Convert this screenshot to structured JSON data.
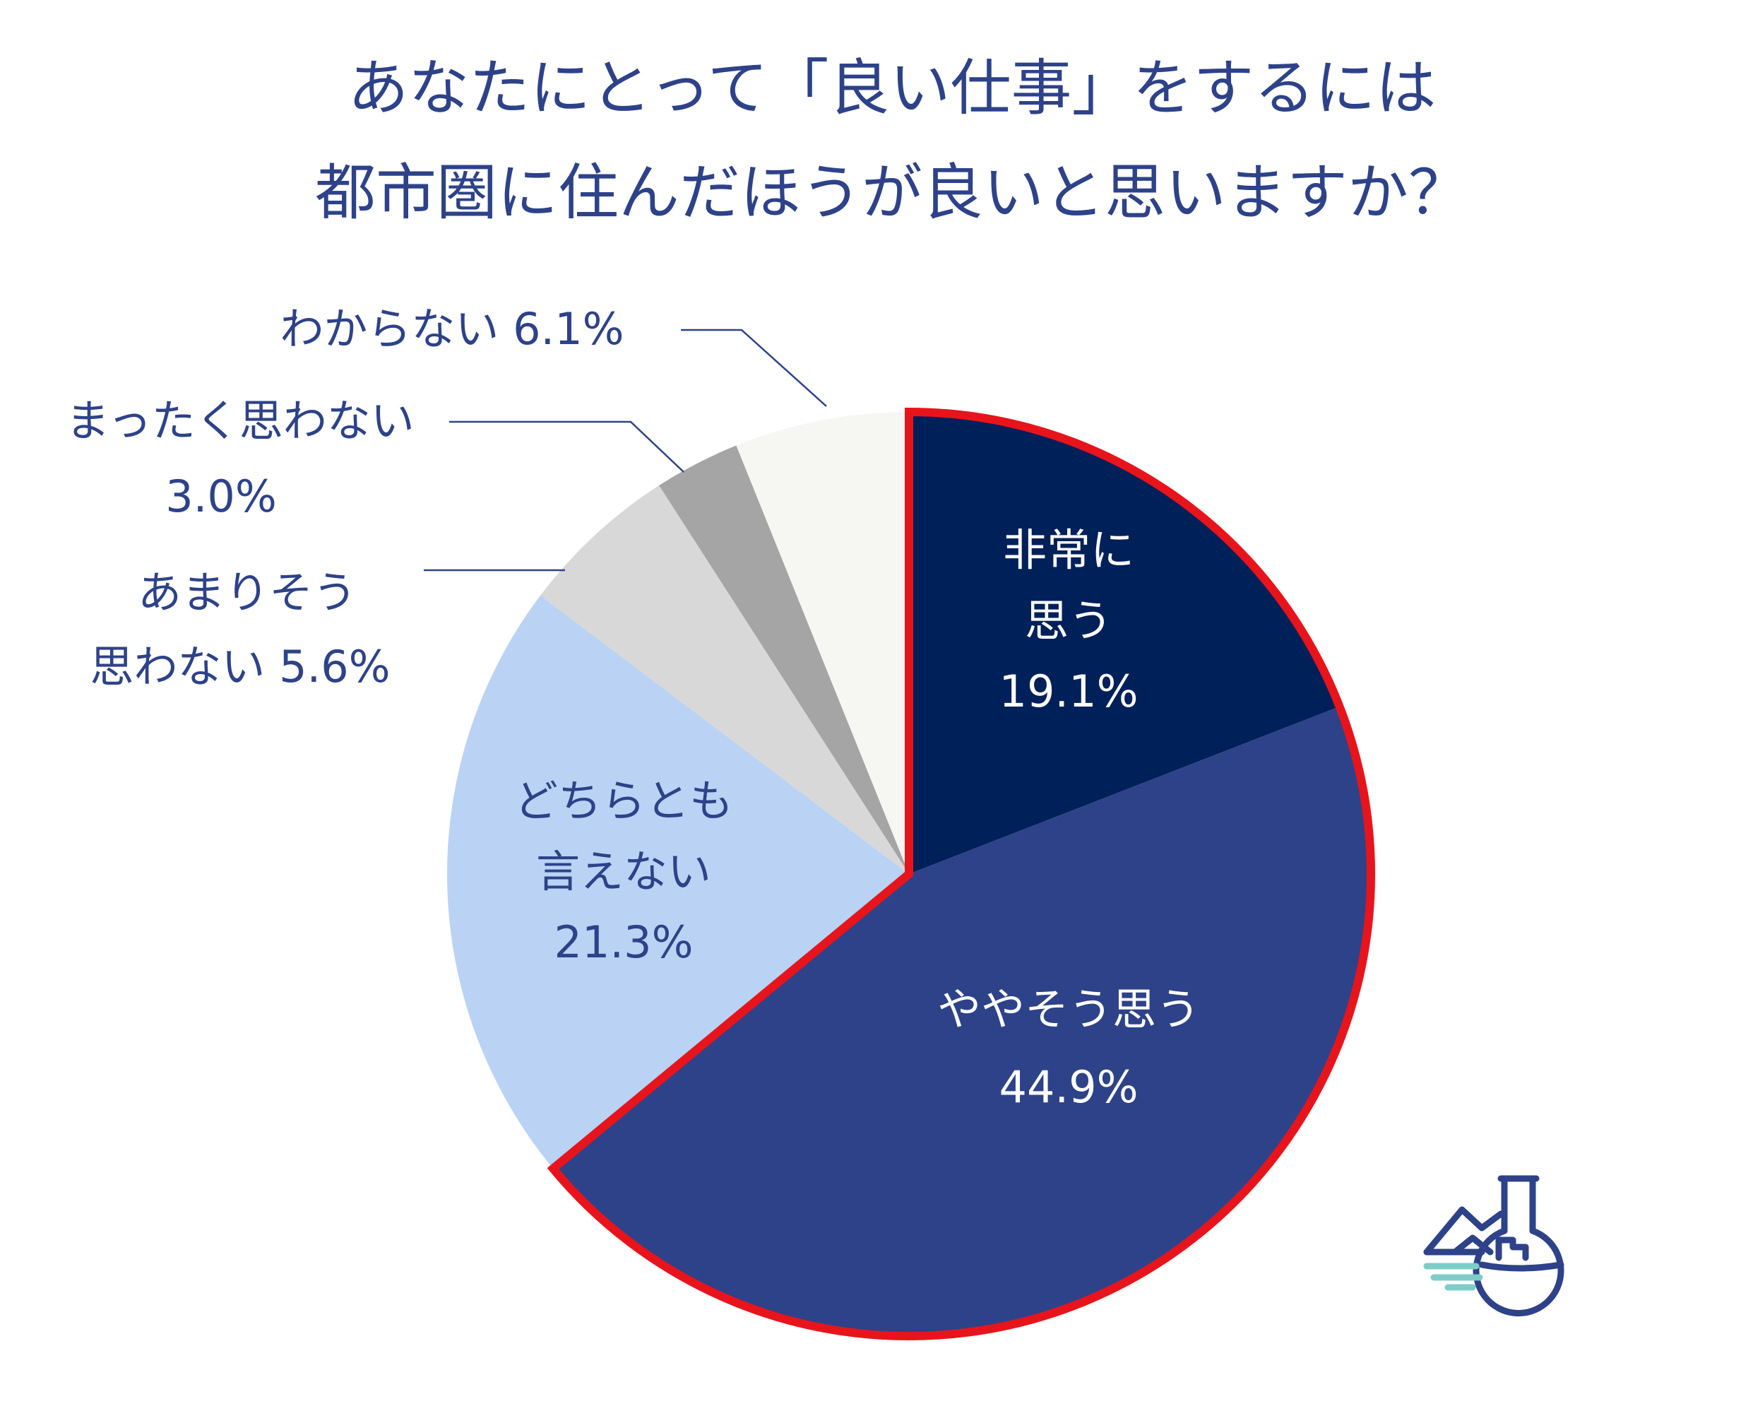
{
  "title_lines": [
    "あなたにとって「良い仕事」をするには",
    "都市圏に住んだほうが良いと思いますか？"
  ],
  "chart_data": {
    "type": "pie",
    "start": "12 o'clock",
    "direction": "clockwise",
    "slices": [
      {
        "name_lines": [
          "非常に",
          "思う"
        ],
        "value": 19.1,
        "value_label": "19.1%",
        "color": "#00205a",
        "text_color": "#ffffff",
        "highlight": true
      },
      {
        "name_lines": [
          "ややそう思う"
        ],
        "value": 44.9,
        "value_label": "44.9%",
        "color": "#2d4289",
        "text_color": "#ffffff",
        "highlight": true
      },
      {
        "name_lines": [
          "どちらとも",
          "言えない"
        ],
        "value": 21.3,
        "value_label": "21.3%",
        "color": "#bad3f4",
        "text_color": "#2d4289",
        "highlight": false
      },
      {
        "name_lines": [
          "あまりそう",
          "思わない 5.6%"
        ],
        "value": 5.6,
        "value_label": "",
        "color": "#d8d8d8",
        "text_color": "#2d4289",
        "highlight": false,
        "callout": true
      },
      {
        "name_lines": [
          "まったく思わない",
          "3.0%"
        ],
        "value": 3.0,
        "value_label": "",
        "color": "#a5a5a5",
        "text_color": "#2d4289",
        "highlight": false,
        "callout": true
      },
      {
        "name_lines": [
          "わからない  6.1%"
        ],
        "value": 6.1,
        "value_label": "",
        "color": "#f6f7f2",
        "text_color": "#2d4289",
        "highlight": false,
        "callout": true
      }
    ],
    "highlight_color": "#e8141c",
    "leader_line_color": "#2d4289"
  },
  "logo": {
    "icon": "flask-mountain-logo-icon",
    "color": "#2d4289",
    "accent": "#7ccdc8"
  }
}
